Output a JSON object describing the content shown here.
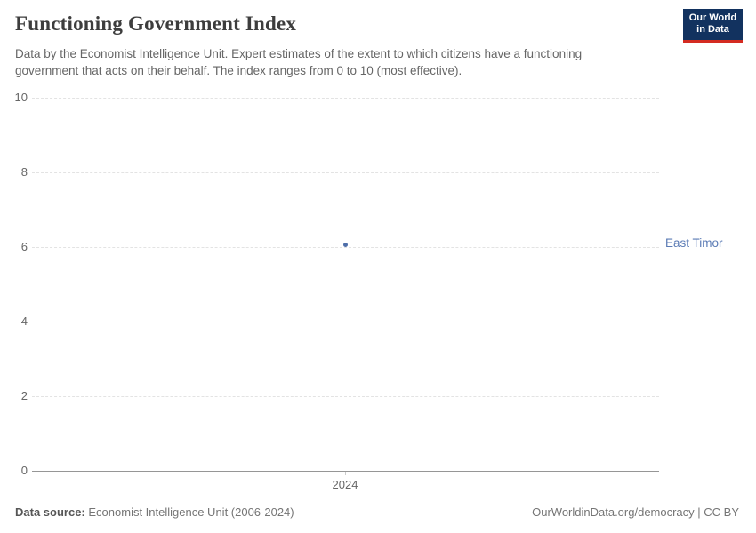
{
  "header": {
    "title": "Functioning Government Index",
    "subtitle": "Data by the Economist Intelligence Unit. Expert estimates of the extent to which citizens have a functioning government that acts on their behalf. The index ranges from 0 to 10 (most effective).",
    "logo_line1": "Our World",
    "logo_line2": "in Data"
  },
  "chart_data": {
    "type": "scatter",
    "title": "Functioning Government Index",
    "x": [
      2024
    ],
    "x_tick_labels": [
      "2024"
    ],
    "series": [
      {
        "name": "East Timor",
        "values": [
          6.07
        ]
      }
    ],
    "xlabel": "",
    "ylabel": "",
    "ylim": [
      0,
      10
    ],
    "yticks": [
      0,
      2,
      4,
      6,
      8,
      10
    ],
    "grid": "horizontal-dashed",
    "legend_position": "entity label right of plot"
  },
  "colors": {
    "series": "#4e6ea9",
    "entity_label": "#5b7bb5",
    "logo_bg": "#12325f",
    "logo_accent": "#d42b21",
    "grid": "#e3e3e3",
    "axis": "#969696",
    "tick_text": "#666666"
  },
  "footer": {
    "source_label": "Data source:",
    "source_value": "Economist Intelligence Unit (2006-2024)",
    "citation": "OurWorldinData.org/democracy | CC BY"
  }
}
